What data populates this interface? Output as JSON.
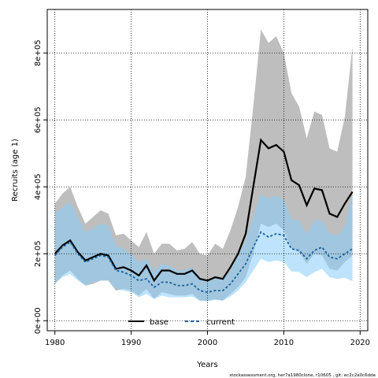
{
  "chart_data": {
    "type": "line",
    "xlabel": "Years",
    "ylabel": "Recruits (age 1)",
    "xlim": [
      1979,
      2021
    ],
    "ylim": [
      -30000,
      930000
    ],
    "x_ticks": [
      1980,
      1990,
      2000,
      2010,
      2020
    ],
    "x_tick_labels": [
      "1980",
      "1990",
      "2000",
      "2010",
      "2020"
    ],
    "y_ticks": [
      0,
      200000,
      400000,
      600000,
      800000
    ],
    "y_tick_labels": [
      "0e+00",
      "2e+05",
      "4e+05",
      "6e+05",
      "8e+05"
    ],
    "grid": true,
    "legend_position": "bottom",
    "x": [
      1980,
      1981,
      1982,
      1983,
      1984,
      1985,
      1986,
      1987,
      1988,
      1989,
      1990,
      1991,
      1992,
      1993,
      1994,
      1995,
      1996,
      1997,
      1998,
      1999,
      2000,
      2001,
      2002,
      2003,
      2004,
      2005,
      2006,
      2007,
      2008,
      2009,
      2010,
      2011,
      2012,
      2013,
      2014,
      2015,
      2016,
      2017,
      2018,
      2019
    ],
    "series": [
      {
        "name": "base",
        "color": "#000000",
        "values": [
          200000,
          225000,
          240000,
          205000,
          180000,
          190000,
          200000,
          195000,
          155000,
          160000,
          150000,
          135000,
          165000,
          120000,
          150000,
          150000,
          140000,
          140000,
          150000,
          125000,
          120000,
          130000,
          125000,
          160000,
          200000,
          260000,
          400000,
          540000,
          515000,
          525000,
          505000,
          420000,
          405000,
          345000,
          395000,
          390000,
          320000,
          310000,
          350000,
          385000
        ],
        "upper": [
          350000,
          380000,
          400000,
          340000,
          290000,
          310000,
          330000,
          320000,
          255000,
          260000,
          240000,
          220000,
          265000,
          200000,
          230000,
          230000,
          210000,
          215000,
          235000,
          200000,
          195000,
          230000,
          215000,
          270000,
          340000,
          430000,
          640000,
          870000,
          830000,
          850000,
          800000,
          680000,
          640000,
          545000,
          625000,
          615000,
          515000,
          505000,
          610000,
          820000
        ],
        "lower": [
          110000,
          135000,
          150000,
          125000,
          105000,
          110000,
          120000,
          120000,
          90000,
          95000,
          90000,
          75000,
          95000,
          65000,
          85000,
          80000,
          75000,
          75000,
          80000,
          60000,
          60000,
          65000,
          60000,
          80000,
          100000,
          130000,
          200000,
          290000,
          280000,
          290000,
          270000,
          215000,
          205000,
          170000,
          200000,
          195000,
          155000,
          150000,
          175000,
          195000
        ]
      },
      {
        "name": "current",
        "color": "#1a5fa0",
        "values": [
          195000,
          220000,
          235000,
          200000,
          175000,
          185000,
          195000,
          190000,
          150000,
          145000,
          135000,
          120000,
          125000,
          100000,
          115000,
          115000,
          105000,
          105000,
          110000,
          90000,
          85000,
          90000,
          90000,
          110000,
          140000,
          170000,
          220000,
          265000,
          250000,
          260000,
          255000,
          215000,
          210000,
          185000,
          210000,
          220000,
          190000,
          185000,
          200000,
          215000
        ],
        "upper": [
          320000,
          340000,
          355000,
          310000,
          265000,
          275000,
          290000,
          285000,
          225000,
          215000,
          200000,
          175000,
          185000,
          150000,
          170000,
          165000,
          150000,
          150000,
          160000,
          130000,
          120000,
          130000,
          125000,
          150000,
          195000,
          240000,
          310000,
          380000,
          365000,
          375000,
          360000,
          305000,
          300000,
          260000,
          300000,
          300000,
          260000,
          255000,
          280000,
          385000
        ],
        "lower": [
          110000,
          130000,
          140000,
          120000,
          105000,
          115000,
          120000,
          120000,
          95000,
          90000,
          85000,
          70000,
          80000,
          65000,
          75000,
          70000,
          70000,
          70000,
          72000,
          60000,
          58000,
          62000,
          60000,
          72000,
          90000,
          115000,
          150000,
          185000,
          175000,
          180000,
          175000,
          148000,
          145000,
          130000,
          145000,
          155000,
          130000,
          125000,
          128000,
          118000
        ]
      }
    ]
  },
  "legend": [
    {
      "label": "base"
    },
    {
      "label": "current"
    }
  ],
  "footer_text": "stockassessment.org, her7a1980clone, r10605 , git: ec2c2a0c6dde"
}
